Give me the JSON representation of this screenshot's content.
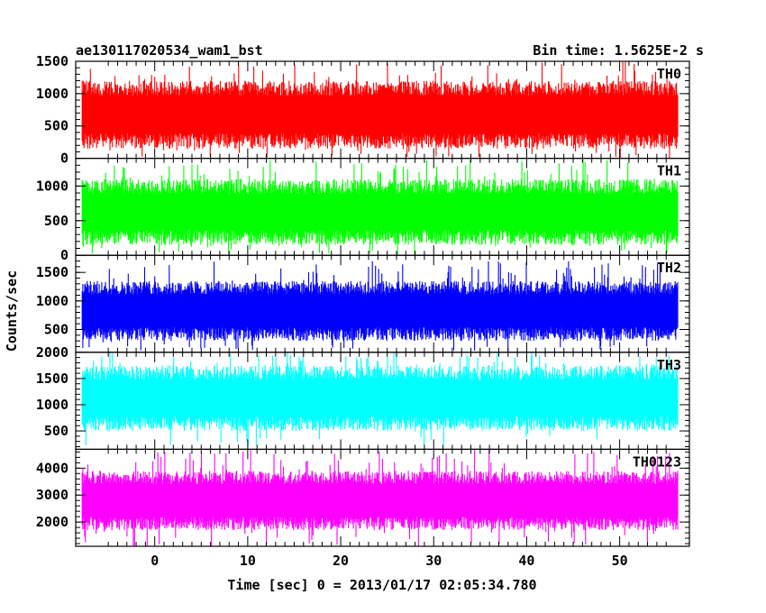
{
  "header": {
    "title": "ae130117020534_wam1_bst",
    "bin_time": "Bin time: 1.5625E-2 s"
  },
  "axes": {
    "xlabel": "Time [sec] 0 = 2013/01/17 02:05:34.780",
    "ylabel": "Counts/sec"
  },
  "chart_data": {
    "type": "line",
    "shared_x": true,
    "grid": false,
    "xlim": [
      -8.5,
      57.5
    ],
    "x_ticks": [
      0,
      10,
      20,
      30,
      40,
      50
    ],
    "x_tick_labels": [
      "0",
      "10",
      "20",
      "30",
      "40",
      "50"
    ],
    "x_data_range": [
      -7.8,
      56.3
    ],
    "panels": [
      {
        "label": "TH0",
        "color": "#ff0000",
        "ylim": [
          0,
          1500
        ],
        "y_ticks": [
          0,
          500,
          1000,
          1500
        ],
        "y_tick_labels": [
          "0",
          "500",
          "1000",
          "1500"
        ],
        "typical_range": [
          150,
          1200
        ],
        "extreme_range": [
          0,
          1500
        ]
      },
      {
        "label": "TH1",
        "color": "#00ff00",
        "ylim": [
          0,
          1400
        ],
        "y_ticks": [
          0,
          500,
          1000
        ],
        "y_tick_labels": [
          "0",
          "500",
          "1000"
        ],
        "typical_range": [
          150,
          1100
        ],
        "extreme_range": [
          0,
          1400
        ]
      },
      {
        "label": "TH2",
        "color": "#0000ff",
        "ylim": [
          100,
          1800
        ],
        "y_ticks": [
          500,
          1000,
          1500
        ],
        "y_tick_labels": [
          "500",
          "1000",
          "1500"
        ],
        "typical_range": [
          300,
          1350
        ],
        "extreme_range": [
          100,
          1700
        ]
      },
      {
        "label": "TH3",
        "color": "#00ffff",
        "ylim": [
          150,
          2000
        ],
        "y_ticks": [
          500,
          1000,
          1500,
          2000
        ],
        "y_tick_labels": [
          "500",
          "1000",
          "1500",
          "2000"
        ],
        "typical_range": [
          500,
          1750
        ],
        "extreme_range": [
          200,
          2000
        ]
      },
      {
        "label": "TH0123",
        "color": "#ff00ff",
        "ylim": [
          1100,
          4700
        ],
        "y_ticks": [
          2000,
          3000,
          4000
        ],
        "y_tick_labels": [
          "2000",
          "3000",
          "4000"
        ],
        "typical_range": [
          1700,
          3900
        ],
        "extreme_range": [
          1100,
          4700
        ]
      }
    ]
  }
}
